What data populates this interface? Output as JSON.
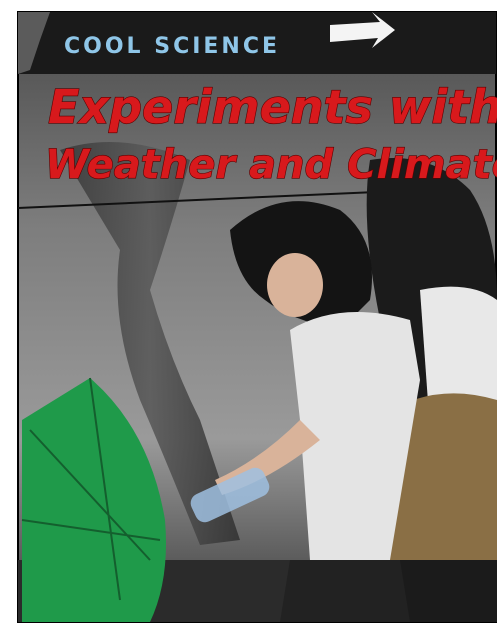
{
  "cover": {
    "series": "COOL SCIENCE",
    "title_lines": [
      "Experiments with",
      "Weather and Climate"
    ]
  }
}
